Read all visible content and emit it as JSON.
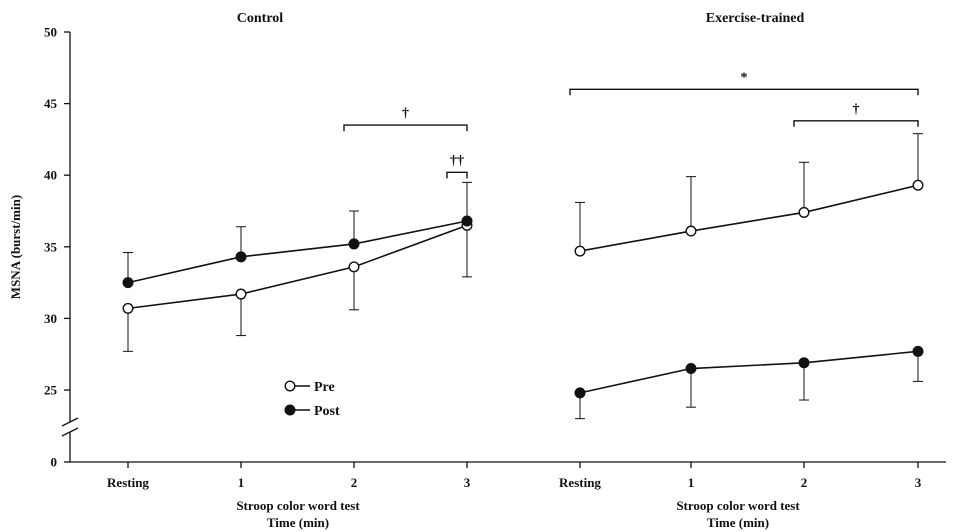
{
  "chart_data": {
    "type": "line",
    "ylabel": "MSNA (burst/min)",
    "ylim": [
      0,
      50
    ],
    "y_ticks": [
      "0",
      "25",
      "30",
      "35",
      "40",
      "45",
      "50"
    ],
    "y_axis_break": "between 0 and 25",
    "legend": {
      "placement": "bottom-left of Control panel",
      "entries": [
        {
          "name": "Pre",
          "marker": "open-circle"
        },
        {
          "name": "Post",
          "marker": "filled-circle"
        }
      ]
    },
    "panels": [
      {
        "title": "Control",
        "categories": [
          "Resting",
          "1",
          "2",
          "3"
        ],
        "xlabel_line1": "Stroop color word test",
        "xlabel_line2": "Time (min)",
        "series": [
          {
            "name": "Pre",
            "marker": "open-circle",
            "values": [
              30.7,
              31.7,
              33.6,
              36.5
            ],
            "error": [
              3.0,
              2.9,
              3.0,
              3.6
            ],
            "error_dir": "down"
          },
          {
            "name": "Post",
            "marker": "filled-circle",
            "values": [
              32.5,
              34.3,
              35.2,
              36.8
            ],
            "error": [
              2.1,
              2.1,
              2.3,
              2.7
            ],
            "error_dir": "up"
          }
        ],
        "significance": [
          {
            "label": "†",
            "from": "2",
            "to": "3",
            "y": 43.5
          },
          {
            "label": "††",
            "from": "3",
            "to": "3",
            "y": 40.2
          }
        ]
      },
      {
        "title": "Exercise-trained",
        "categories": [
          "Resting",
          "1",
          "2",
          "3"
        ],
        "xlabel_line1": "Stroop color word test",
        "xlabel_line2": "Time (min)",
        "series": [
          {
            "name": "Pre",
            "marker": "open-circle",
            "values": [
              34.7,
              36.1,
              37.4,
              39.3
            ],
            "error": [
              3.4,
              3.8,
              3.5,
              3.6
            ],
            "error_dir": "up"
          },
          {
            "name": "Post",
            "marker": "filled-circle",
            "values": [
              24.8,
              26.5,
              26.9,
              27.7
            ],
            "error": [
              1.8,
              2.7,
              2.6,
              2.1
            ],
            "error_dir": "down"
          }
        ],
        "significance": [
          {
            "label": "*",
            "from": "Resting",
            "to": "3",
            "y": 46.0
          },
          {
            "label": "†",
            "from": "2",
            "to": "3",
            "y": 43.8
          }
        ]
      }
    ]
  }
}
